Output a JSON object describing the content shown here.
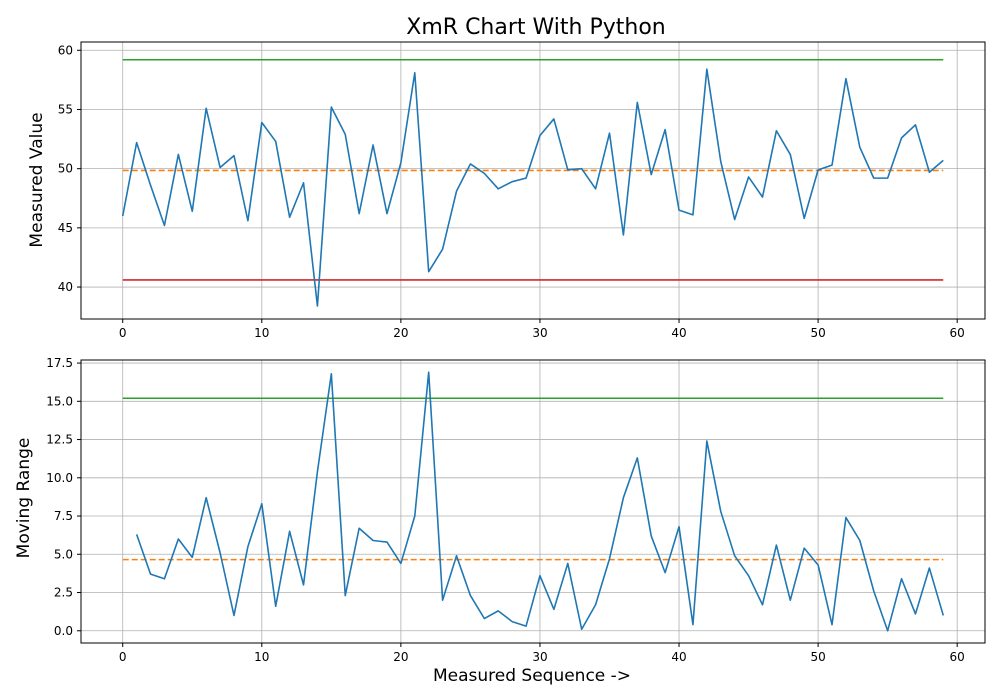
{
  "chart_data": {
    "type": "line",
    "title": "XmR Chart With Python",
    "x_axis_label": "Measured Sequence ->",
    "x_range": [
      -3,
      62
    ],
    "x_ticks": [
      0,
      10,
      20,
      30,
      40,
      50,
      60
    ],
    "colors": {
      "series": "#1f77b4",
      "mean": "#ff7f0e",
      "ucl": "#2ca02c",
      "lcl": "#d62728",
      "grid": "#b0b0b0"
    },
    "grid": true,
    "subplots": [
      {
        "name": "individuals",
        "ylabel": "Measured Value",
        "ylim": [
          37.3,
          60.7
        ],
        "y_ticks": [
          40,
          45,
          50,
          55,
          60
        ],
        "series": {
          "x_start": 0,
          "values": [
            46.0,
            52.2,
            48.6,
            45.2,
            51.2,
            46.4,
            55.1,
            50.1,
            51.1,
            45.6,
            53.9,
            52.3,
            45.9,
            48.8,
            38.4,
            55.2,
            52.9,
            46.2,
            52.0,
            46.2,
            50.5,
            58.1,
            41.3,
            43.2,
            48.1,
            50.4,
            49.6,
            48.3,
            48.9,
            49.2,
            52.8,
            54.2,
            49.9,
            50.0,
            48.3,
            53.0,
            44.4,
            55.6,
            49.5,
            53.3,
            46.5,
            46.1,
            58.4,
            50.6,
            45.7,
            49.3,
            47.6,
            53.2,
            51.2,
            45.8,
            49.9,
            50.3,
            57.6,
            51.8,
            49.2,
            49.2,
            52.6,
            53.7,
            49.7,
            50.7
          ]
        },
        "lines": [
          {
            "role": "ucl",
            "y": 59.2,
            "x_range": [
              0,
              59
            ],
            "style": "solid"
          },
          {
            "role": "mean",
            "y": 49.85,
            "x_range": [
              0,
              59
            ],
            "style": "dashed"
          },
          {
            "role": "lcl",
            "y": 40.6,
            "x_range": [
              0,
              59
            ],
            "style": "solid"
          }
        ]
      },
      {
        "name": "moving-range",
        "ylabel": "Moving Range",
        "ylim": [
          -0.8,
          17.7
        ],
        "y_ticks": [
          "0.0",
          "2.5",
          "5.0",
          "7.5",
          "10.0",
          "12.5",
          "15.0",
          "17.5"
        ],
        "series": {
          "x_start": 1,
          "values": [
            6.3,
            3.7,
            3.4,
            6.0,
            4.8,
            8.7,
            5.1,
            1.0,
            5.5,
            8.3,
            1.6,
            6.5,
            3.0,
            10.4,
            16.8,
            2.3,
            6.7,
            5.9,
            5.8,
            4.4,
            7.5,
            16.9,
            2.0,
            4.9,
            2.3,
            0.8,
            1.3,
            0.6,
            0.3,
            3.6,
            1.4,
            4.4,
            0.1,
            1.7,
            4.7,
            8.7,
            11.3,
            6.2,
            3.8,
            6.8,
            0.4,
            12.4,
            7.8,
            4.9,
            3.6,
            1.7,
            5.6,
            2.0,
            5.4,
            4.3,
            0.4,
            7.4,
            5.9,
            2.6,
            0.0,
            3.4,
            1.1,
            4.1,
            1.0
          ]
        },
        "lines": [
          {
            "role": "ucl",
            "y": 15.2,
            "x_range": [
              0,
              59
            ],
            "style": "solid"
          },
          {
            "role": "mean",
            "y": 4.65,
            "x_range": [
              0,
              59
            ],
            "style": "dashed"
          }
        ]
      }
    ]
  }
}
